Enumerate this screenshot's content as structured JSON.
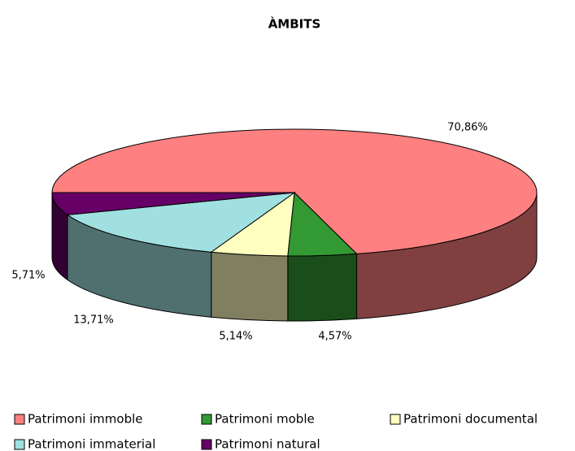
{
  "chart_data": {
    "type": "pie",
    "title": "ÀMBITS",
    "categories": [
      "Patrimoni immoble",
      "Patrimoni moble",
      "Patrimoni documental",
      "Patrimoni immaterial",
      "Patrimoni natural"
    ],
    "values": [
      70.86,
      4.57,
      5.14,
      13.71,
      5.71
    ],
    "value_labels": [
      "70,86%",
      "4,57%",
      "5,14%",
      "13,71%",
      "5,71%"
    ],
    "colors": [
      "#ff8080",
      "#339933",
      "#ffffc0",
      "#a0e0e0",
      "#660066"
    ]
  }
}
